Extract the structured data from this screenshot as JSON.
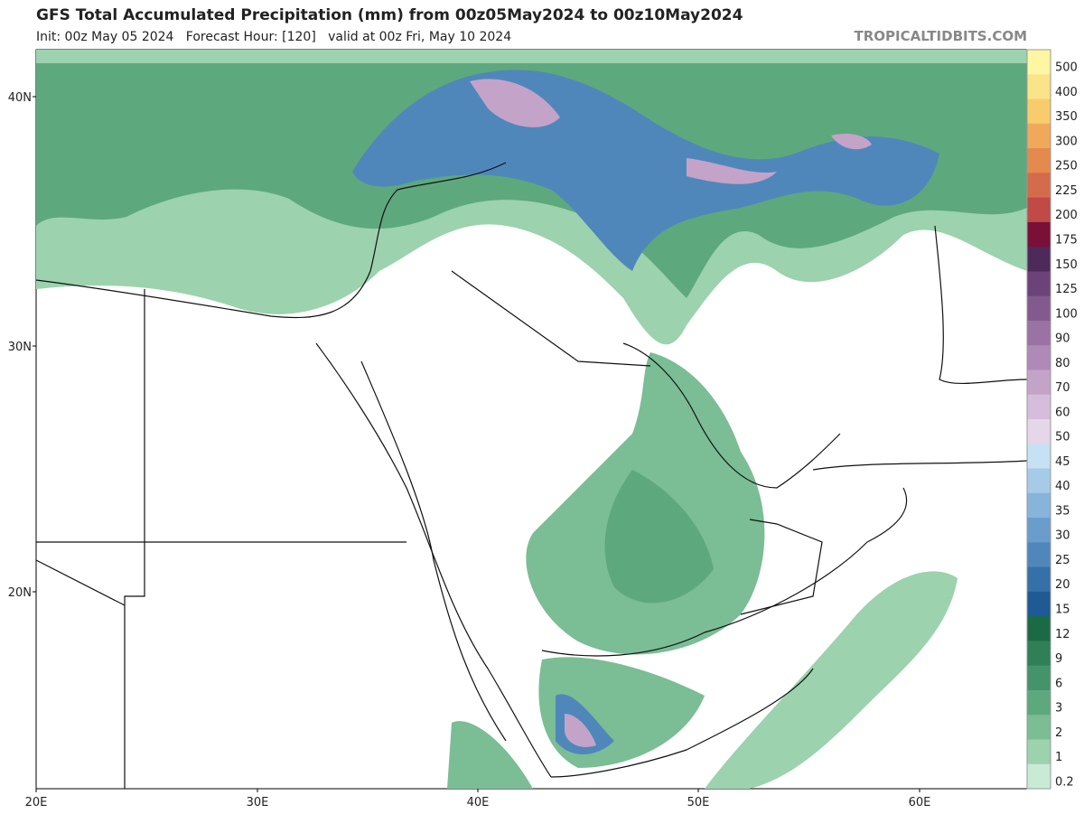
{
  "header": {
    "title": "GFS Total Accumulated Precipitation (mm) from 00z05May2024 to 00z10May2024",
    "subtitle": "Init: 00z May 05 2024   Forecast Hour: [120]   valid at 00z Fri, May 10 2024",
    "brand": "TROPICALTIDBITS.COM"
  },
  "map": {
    "lat_labels": [
      "40N",
      "30N",
      "20N"
    ],
    "lon_labels": [
      "20E",
      "30E",
      "40E",
      "50E",
      "60E"
    ]
  },
  "colorbar": {
    "labels": [
      "500",
      "400",
      "350",
      "300",
      "250",
      "225",
      "200",
      "175",
      "150",
      "125",
      "100",
      "90",
      "80",
      "70",
      "60",
      "50",
      "45",
      "40",
      "35",
      "30",
      "25",
      "20",
      "15",
      "12",
      "9",
      "6",
      "3",
      "2",
      "1",
      "0.2"
    ],
    "colors": [
      "#fdf6a3",
      "#fbe38a",
      "#f8cc6d",
      "#f0a95a",
      "#e48a4f",
      "#d46c4b",
      "#bf4a46",
      "#7a0f37",
      "#4d2a5a",
      "#6b4379",
      "#835a8e",
      "#9a72a3",
      "#b08ab6",
      "#c4a3c9",
      "#d6bddb",
      "#e6d6ea",
      "#c6e1f3",
      "#a6cbe8",
      "#87b4da",
      "#6a9dcb",
      "#4f87bb",
      "#3670a8",
      "#1e5a93",
      "#1c6a45",
      "#2f7f57",
      "#45936a",
      "#5ea87e",
      "#7bbd94",
      "#9cd2ad",
      "#c9ead5"
    ]
  }
}
